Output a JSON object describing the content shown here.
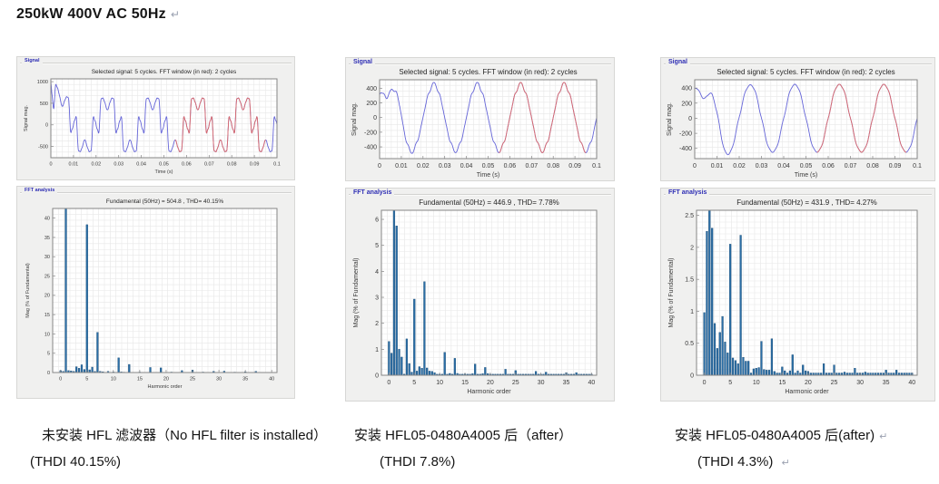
{
  "page": {
    "title": "250kW 400V AC 50Hz",
    "return_mark": "↵"
  },
  "colors": {
    "signal_line": "#6565d8",
    "fft_window_line": "#dd6b6b",
    "bar_fill": "#2a6ea6",
    "bar_edge": "#1b4d77",
    "panel_bg": "#f0f0ef",
    "panel_label": "#2e2eb4",
    "axes_border": "#868686",
    "grid_line": "#e7e7e7"
  },
  "figures": [
    {
      "signal_panel_label": "Signal",
      "fft_panel_label": "FFT analysis",
      "caption_line1": "未安装 HFL 滤波器（No HFL filter is installed）",
      "caption_line2": "(THDI 40.15%)",
      "caption_mark1": "",
      "caption_mark2": ""
    },
    {
      "signal_panel_label": "Signal",
      "fft_panel_label": "FFT analysis",
      "caption_line1": "安装 HFL05-0480A4005 后（after）",
      "caption_line2": "(THDI 7.8%)",
      "caption_mark1": "",
      "caption_mark2": ""
    },
    {
      "signal_panel_label": "Signal",
      "fft_panel_label": "FFT analysis",
      "caption_line1": "安装 HFL05-0480A4005 后(after)",
      "caption_line2": "(THDI 4.3%)",
      "caption_mark1": "↵",
      "caption_mark2": "↵"
    }
  ],
  "chart_data": [
    {
      "type": "line",
      "title": "Selected signal: 5 cycles. FFT window (in red): 2 cycles",
      "xlabel": "Time (s)",
      "ylabel": "Signal mag.",
      "xlim": [
        0,
        0.1
      ],
      "ylim": [
        -760,
        1065
      ],
      "xticks": [
        0,
        0.01,
        0.02,
        0.03,
        0.04,
        0.05,
        0.06,
        0.07,
        0.08,
        0.09,
        0.1
      ],
      "xtick_labels": [
        "0",
        "0.01",
        "0.02",
        "0.03",
        "0.04",
        "0.05",
        "0.06",
        "0.07",
        "0.08",
        "0.09",
        "0.1"
      ],
      "yticks": [
        -500,
        0,
        500,
        1000
      ],
      "ytick_labels": [
        "-500",
        "0",
        "500",
        "1000"
      ],
      "fft_window_t": [
        0.055,
        0.095
      ],
      "waveform": {
        "fundamental_hz": 50,
        "harmonic_components_peak": [
          [
            1,
            540
          ],
          [
            5,
            -250
          ],
          [
            7,
            -90
          ],
          [
            11,
            60
          ],
          [
            13,
            35
          ],
          [
            17,
            -25
          ],
          [
            19,
            -18
          ]
        ],
        "transient": {
          "amp": 1030,
          "tau": 0.002,
          "freq": 0
        }
      }
    },
    {
      "type": "bar",
      "title": "Fundamental (50Hz) = 504.8 , THD= 40.15%",
      "fundamental_50hz": 504.8,
      "thd_percent": 40.15,
      "xlabel": "Harmonic order",
      "ylabel": "Mag (% of Fundamental)",
      "xlim": [
        -1.5,
        41
      ],
      "ylim": [
        0,
        42.5
      ],
      "xticks": [
        0,
        5,
        10,
        15,
        20,
        25,
        30,
        35,
        40
      ],
      "xtick_labels": [
        "0",
        "5",
        "10",
        "15",
        "20",
        "25",
        "30",
        "35",
        "40"
      ],
      "yticks": [
        0,
        5,
        10,
        15,
        20,
        25,
        30,
        35,
        40
      ],
      "ytick_labels": [
        "0",
        "5",
        "10",
        "15",
        "20",
        "25",
        "30",
        "35",
        "40"
      ],
      "bar_step": 0.5,
      "baseline": 0.07,
      "bars": {
        "0": 0.5,
        "0.5": 0.3,
        "1": 100,
        "1.5": 0.5,
        "2": 0.4,
        "2.5": 0.3,
        "3": 1.5,
        "3.5": 1.1,
        "4": 2.0,
        "4.5": 0.8,
        "5": 38.3,
        "5.5": 0.7,
        "6": 1.4,
        "6.5": 0.3,
        "7": 10.4,
        "7.5": 0.3,
        "8": 0.2,
        "9": 0.3,
        "10": 0.15,
        "11": 3.8,
        "11.5": 0.15,
        "12": 0.1,
        "13": 2.1,
        "15": 0.12,
        "17": 1.3,
        "19": 1.2,
        "21": 0.12,
        "23": 0.5,
        "25": 0.65,
        "27": 0.12,
        "29": 0.3,
        "31": 0.35,
        "33": 0.1,
        "35": 0.2,
        "37": 0.3
      }
    },
    {
      "type": "line",
      "title": "Selected signal: 5 cycles. FFT window (in red): 2 cycles",
      "xlabel": "Time (s)",
      "ylabel": "Signal mag.",
      "xlim": [
        0,
        0.1
      ],
      "ylim": [
        -560,
        515
      ],
      "xticks": [
        0,
        0.01,
        0.02,
        0.03,
        0.04,
        0.05,
        0.06,
        0.07,
        0.08,
        0.09,
        0.1
      ],
      "xtick_labels": [
        "0",
        "0.01",
        "0.02",
        "0.03",
        "0.04",
        "0.05",
        "0.06",
        "0.07",
        "0.08",
        "0.09",
        "0.1"
      ],
      "yticks": [
        -400,
        -200,
        0,
        200,
        400
      ],
      "ytick_labels": [
        "-400",
        "-200",
        "0",
        "200",
        "400"
      ],
      "fft_window_t": [
        0.055,
        0.095
      ],
      "waveform": {
        "fundamental_hz": 50,
        "harmonic_components_peak": [
          [
            1,
            455
          ],
          [
            5,
            13
          ],
          [
            7,
            -16
          ],
          [
            11,
            5
          ]
        ],
        "transient": {
          "amp": 310,
          "tau": 0.005,
          "freq": 110
        }
      }
    },
    {
      "type": "bar",
      "title": "Fundamental (50Hz) = 446.9 , THD= 7.78%",
      "fundamental_50hz": 446.9,
      "thd_percent": 7.78,
      "xlabel": "Harmonic order",
      "ylabel": "Mag (% of Fundamental)",
      "xlim": [
        -1.5,
        41
      ],
      "ylim": [
        0,
        6.35
      ],
      "xticks": [
        0,
        5,
        10,
        15,
        20,
        25,
        30,
        35,
        40
      ],
      "xtick_labels": [
        "0",
        "5",
        "10",
        "15",
        "20",
        "25",
        "30",
        "35",
        "40"
      ],
      "yticks": [
        0,
        1,
        2,
        3,
        4,
        5,
        6
      ],
      "ytick_labels": [
        "0",
        "1",
        "2",
        "3",
        "4",
        "5",
        "6"
      ],
      "bar_step": 0.5,
      "baseline": 0.04,
      "bars": {
        "0": 1.3,
        "0.5": 0.85,
        "1": 100,
        "1.5": 5.75,
        "2": 1.0,
        "2.5": 0.7,
        "3.5": 1.4,
        "4": 0.45,
        "4.5": 0.12,
        "5": 2.93,
        "5.5": 0.16,
        "6": 0.33,
        "6.5": 0.27,
        "7": 3.6,
        "7.5": 0.28,
        "8": 0.16,
        "8.5": 0.15,
        "9": 0.1,
        "11": 0.88,
        "12": 0.07,
        "13": 0.65,
        "13.5": 0.07,
        "15": 0.05,
        "16.5": 0.06,
        "17": 0.43,
        "18.5": 0.06,
        "19": 0.3,
        "19.5": 0.06,
        "23": 0.23,
        "25": 0.18,
        "29": 0.15,
        "31": 0.12,
        "35": 0.1,
        "37": 0.1
      }
    },
    {
      "type": "line",
      "title": "Selected signal: 5 cycles. FFT window (in red): 2 cycles",
      "xlabel": "Time (s)",
      "ylabel": "Signal mag.",
      "xlim": [
        0,
        0.1
      ],
      "ylim": [
        -535,
        510
      ],
      "xticks": [
        0,
        0.01,
        0.02,
        0.03,
        0.04,
        0.05,
        0.06,
        0.07,
        0.08,
        0.09,
        0.1
      ],
      "xtick_labels": [
        "0",
        "0.01",
        "0.02",
        "0.03",
        "0.04",
        "0.05",
        "0.06",
        "0.07",
        "0.08",
        "0.09",
        "0.1"
      ],
      "yticks": [
        -400,
        -200,
        0,
        200,
        400
      ],
      "ytick_labels": [
        "-400",
        "-200",
        "0",
        "200",
        "400"
      ],
      "fft_window_t": [
        0.055,
        0.095
      ],
      "waveform": {
        "fundamental_hz": 50,
        "harmonic_components_peak": [
          [
            1,
            450
          ],
          [
            5,
            -9
          ],
          [
            7,
            -10
          ]
        ],
        "transient": {
          "amp": 390,
          "tau": 0.006,
          "freq": 100
        }
      }
    },
    {
      "type": "bar",
      "title": "Fundamental (50Hz) = 431.9 , THD= 4.27%",
      "fundamental_50hz": 431.9,
      "thd_percent": 4.27,
      "xlabel": "Harmonic order",
      "ylabel": "Mag (% of Fundamental)",
      "xlim": [
        -1.5,
        41
      ],
      "ylim": [
        0,
        2.58
      ],
      "xticks": [
        0,
        5,
        10,
        15,
        20,
        25,
        30,
        35,
        40
      ],
      "xtick_labels": [
        "0",
        "5",
        "10",
        "15",
        "20",
        "25",
        "30",
        "35",
        "40"
      ],
      "yticks": [
        0,
        0.5,
        1,
        1.5,
        2,
        2.5
      ],
      "ytick_labels": [
        "0",
        "0.5",
        "1",
        "1.5",
        "2",
        "2.5"
      ],
      "bar_step": 0.5,
      "baseline": 0.035,
      "bars": {
        "0": 0.98,
        "0.5": 2.25,
        "1": 100,
        "1.5": 2.3,
        "2": 0.81,
        "2.5": 0.42,
        "3": 0.67,
        "3.5": 0.92,
        "4": 0.52,
        "4.5": 0.35,
        "5": 2.05,
        "5.5": 0.27,
        "6": 0.23,
        "6.5": 0.18,
        "7": 2.19,
        "7.5": 0.28,
        "8": 0.22,
        "8.5": 0.22,
        "9.5": 0.1,
        "10": 0.11,
        "10.5": 0.12,
        "11": 0.53,
        "11.5": 0.09,
        "12": 0.08,
        "12.5": 0.08,
        "13": 0.57,
        "13.5": 0.06,
        "15": 0.13,
        "15.5": 0.07,
        "16.5": 0.07,
        "17": 0.32,
        "18": 0.07,
        "19": 0.16,
        "19.5": 0.07,
        "20": 0.06,
        "23": 0.18,
        "25": 0.16,
        "27": 0.05,
        "29": 0.11,
        "31": 0.05,
        "35": 0.08,
        "37": 0.08
      }
    }
  ]
}
